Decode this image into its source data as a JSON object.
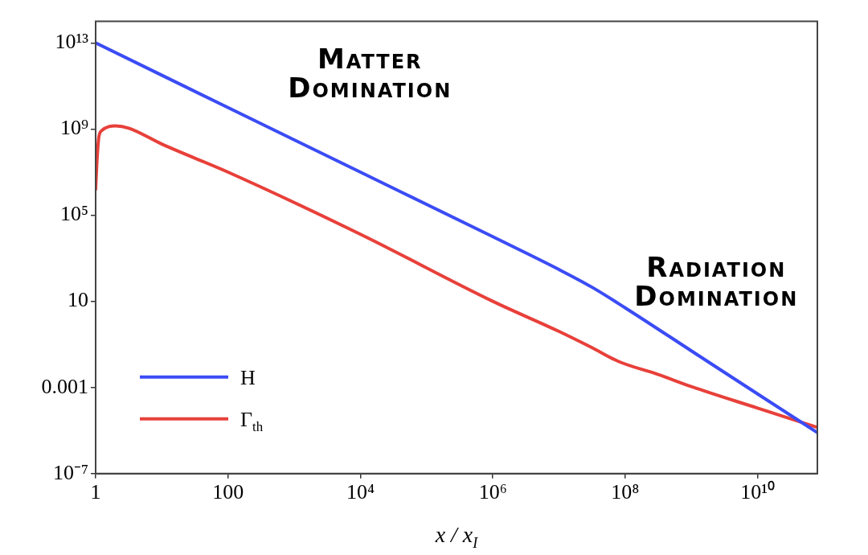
{
  "chart_data": {
    "type": "line",
    "xlabel": "x / x$_{I}$",
    "log": "xy",
    "xlim": [
      1,
      80000000000.0
    ],
    "ylim": [
      1e-07,
      100000000000000.0
    ],
    "xticks": [
      1,
      100,
      {
        "value": 10000,
        "label": "10⁴"
      },
      {
        "value": 1000000.0,
        "label": "10⁶"
      },
      {
        "value": 100000000.0,
        "label": "10⁸"
      },
      {
        "value": 10000000000.0,
        "label": "10¹⁰"
      }
    ],
    "yticks": [
      {
        "value": 1e-07,
        "label": "10⁻⁷"
      },
      0.001,
      10,
      {
        "value": 100000.0,
        "label": "10⁵"
      },
      {
        "value": 1000000000.0,
        "label": "10⁹"
      },
      {
        "value": 10000000000000.0,
        "label": "10¹³"
      }
    ],
    "grid": false,
    "legend": "bottom left",
    "marker": "none",
    "line_style": "solid",
    "annotations": [
      "Matter Domination",
      "Radiation Domination"
    ],
    "series": [
      {
        "name": "H",
        "color": "#3b4cf5",
        "x": [
          1,
          100,
          10000,
          1000000.0,
          10000000.0,
          31600000.0,
          100000000.0,
          1000000000.0,
          10000000000.0,
          80000000000.0
        ],
        "values": [
          10000000000000.0,
          10000000000.0,
          10000000.0,
          10000.0,
          300,
          45,
          5,
          0.05,
          0.0005,
          8e-06
        ]
      },
      {
        "name": "Γ$_{th}$",
        "color": "#e8403a",
        "x": [
          1,
          1.047,
          1.122,
          1.259,
          1.585,
          2,
          3.16,
          10,
          100,
          10000,
          1000000.0,
          10000000.0,
          31600000.0,
          80000000.0,
          316000000.0,
          1000000000.0,
          10000000000.0,
          80000000000.0
        ],
        "values": [
          1600000.0,
          32000000.0,
          460000000.0,
          890000000.0,
          1300000000.0,
          1400000000.0,
          1100000000.0,
          200000000.0,
          10000000.0,
          13000,
          10,
          0.4,
          0.07,
          0.016,
          0.004,
          0.0011,
          0.00011,
          1.4e-05
        ]
      }
    ]
  }
}
